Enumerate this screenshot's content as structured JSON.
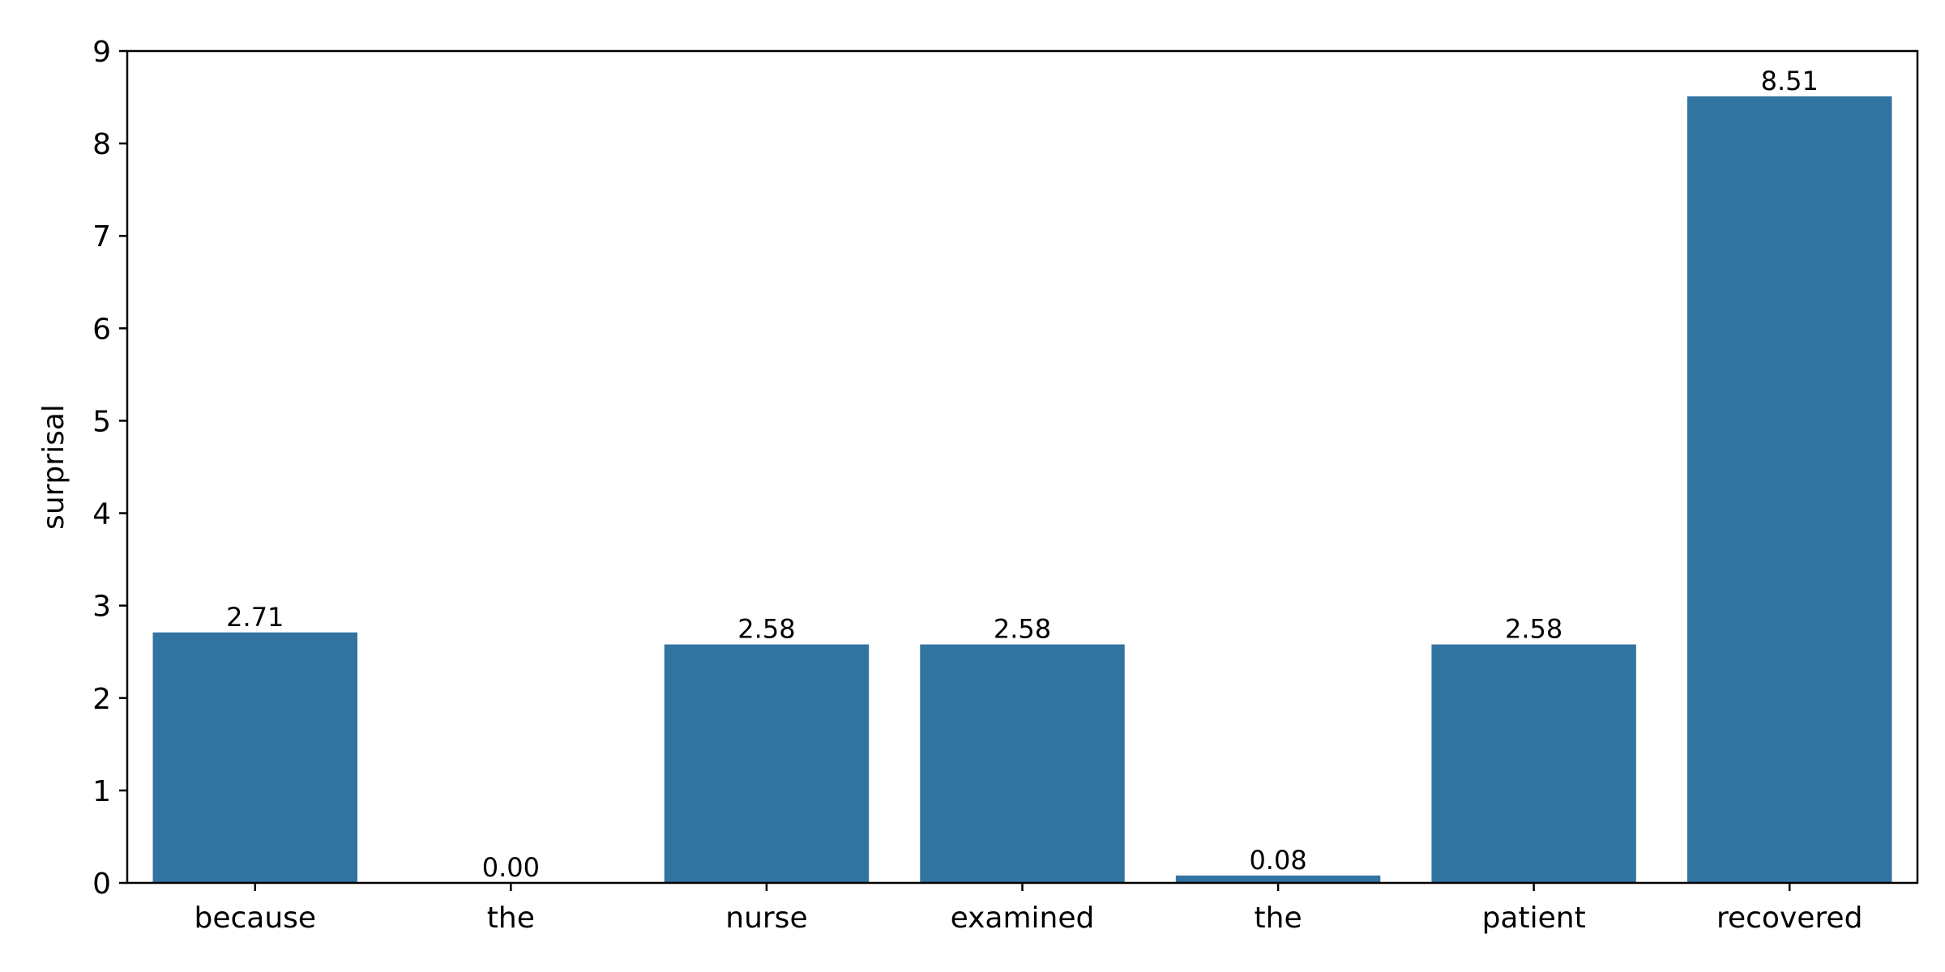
{
  "chart_data": {
    "type": "bar",
    "categories": [
      "because",
      "the",
      "nurse",
      "examined",
      "the",
      "patient",
      "recovered"
    ],
    "values": [
      2.71,
      0.0,
      2.58,
      2.58,
      0.08,
      2.58,
      8.51
    ],
    "data_labels": [
      "2.71",
      "0.00",
      "2.58",
      "2.58",
      "0.08",
      "2.58",
      "8.51"
    ],
    "title": "",
    "xlabel": "",
    "ylabel": "surprisal",
    "ylim": [
      0,
      9
    ],
    "yticks": [
      0,
      1,
      2,
      3,
      4,
      5,
      6,
      7,
      8,
      9
    ],
    "grid": false,
    "legend": "none",
    "bar_color": "#3274a1"
  }
}
